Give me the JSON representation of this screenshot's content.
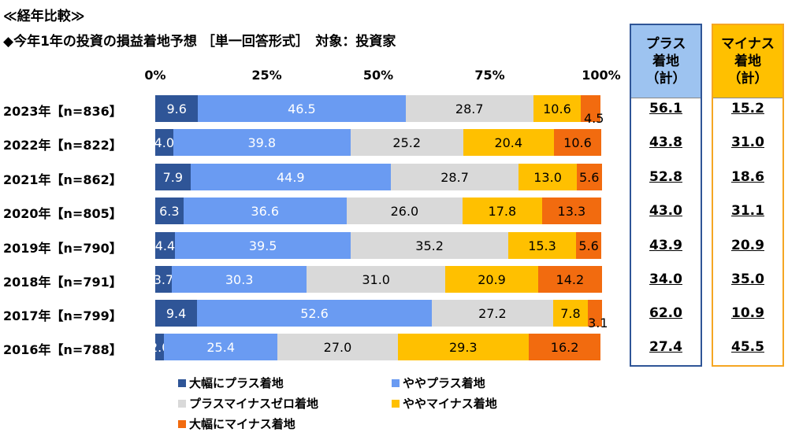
{
  "title": "≪経年比較≫",
  "subtitle": "◆今年1年の投資の損益着地予想 ［単一回答形式］　対象：投資家",
  "chart_data": {
    "type": "bar",
    "orientation": "horizontal",
    "stacked": true,
    "xlim": [
      0,
      100
    ],
    "ticks": [
      "0%",
      "25%",
      "50%",
      "75%",
      "100%"
    ],
    "categories": [
      "2023年【n=836】",
      "2022年【n=822】",
      "2021年【n=862】",
      "2020年【n=805】",
      "2019年【n=790】",
      "2018年【n=791】",
      "2017年【n=799】",
      "2016年【n=788】"
    ],
    "series": [
      {
        "name": "大幅にプラス着地",
        "color": "#2F5597",
        "values": [
          9.6,
          4.0,
          7.9,
          6.3,
          4.4,
          3.7,
          9.4,
          2.0
        ]
      },
      {
        "name": "ややプラス着地",
        "color": "#6A9BF2",
        "values": [
          46.5,
          39.8,
          44.9,
          36.6,
          39.5,
          30.3,
          52.6,
          25.4
        ]
      },
      {
        "name": "プラスマイナスゼロ着地",
        "color": "#D9D9D9",
        "values": [
          28.7,
          25.2,
          28.7,
          26.0,
          35.2,
          31.0,
          27.2,
          27.0
        ]
      },
      {
        "name": "ややマイナス着地",
        "color": "#FFC000",
        "values": [
          10.6,
          20.4,
          13.0,
          17.8,
          15.3,
          20.9,
          7.8,
          29.3
        ]
      },
      {
        "name": "大幅にマイナス着地",
        "color": "#F26B0F",
        "values": [
          4.5,
          10.6,
          5.6,
          13.3,
          5.6,
          14.2,
          3.1,
          16.2
        ]
      }
    ],
    "totals": {
      "plus": {
        "header": [
          "プラス",
          "着地",
          "（計）"
        ],
        "values": [
          "56.1",
          "43.8",
          "52.8",
          "43.0",
          "43.9",
          "34.0",
          "62.0",
          "27.4"
        ]
      },
      "minus": {
        "header": [
          "マイナス",
          "着地",
          "（計）"
        ],
        "values": [
          "15.2",
          "31.0",
          "18.6",
          "31.1",
          "20.9",
          "35.0",
          "10.9",
          "45.5"
        ]
      }
    }
  }
}
